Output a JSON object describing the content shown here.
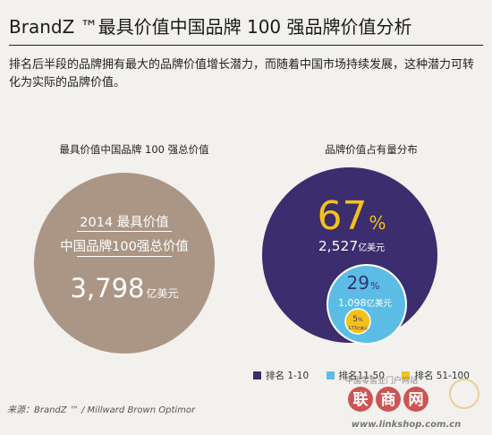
{
  "header": {
    "title": "BrandZ ™最具价值中国品牌 100 强品牌价值分析",
    "subtitle": "排名后半段的品牌拥有最大的品牌价值增长潜力，而随着中国市场持续发展，这种潜力可转化为实际的品牌价值。"
  },
  "left_panel": {
    "heading": "最具价值中国品牌 100 强总价值",
    "line1": "2014 最具价值",
    "line2": "中国品牌100强总价值",
    "value": "3,798",
    "unit": "亿美元"
  },
  "right_panel": {
    "heading": "品牌价值占有量分布",
    "segments": [
      {
        "pct": "67",
        "amount": "2,527",
        "unit": "亿美元"
      },
      {
        "pct": "29",
        "amount": "1,098",
        "unit": "亿美元"
      },
      {
        "pct": "5",
        "amount": "173",
        "unit": "亿美元"
      }
    ]
  },
  "legend": [
    {
      "label": "排名 1-10",
      "color": "#3b2d6e"
    },
    {
      "label": "排名11-50",
      "color": "#5bbde6"
    },
    {
      "label": "排名 51-100",
      "color": "#f4c21a"
    }
  ],
  "source": "来源：BrandZ ™ / Millward Brown Optimor",
  "watermark": {
    "small": "中国零售业门户网站",
    "logo": "联商网",
    "url": "www.linkshop.com.cn"
  },
  "colors": {
    "brown": "#ab9685",
    "navy": "#3b2d6e",
    "light_blue": "#5bbde6",
    "yellow": "#f4c21a",
    "pct_67": "#f4c21a",
    "pct_29": "#3b2d6e"
  },
  "chart_data": [
    {
      "type": "pie",
      "title": "最具价值中国品牌 100 强总价值",
      "categories": [
        "2014 最具价值中国品牌100强总价值"
      ],
      "values": [
        3798
      ],
      "unit": "亿美元"
    },
    {
      "type": "pie",
      "title": "品牌价值占有量分布",
      "categories": [
        "排名 1-10",
        "排名11-50",
        "排名 51-100"
      ],
      "values": [
        2527,
        1098,
        173
      ],
      "percent": [
        67,
        29,
        5
      ],
      "unit": "亿美元",
      "legend": "bottom"
    }
  ]
}
